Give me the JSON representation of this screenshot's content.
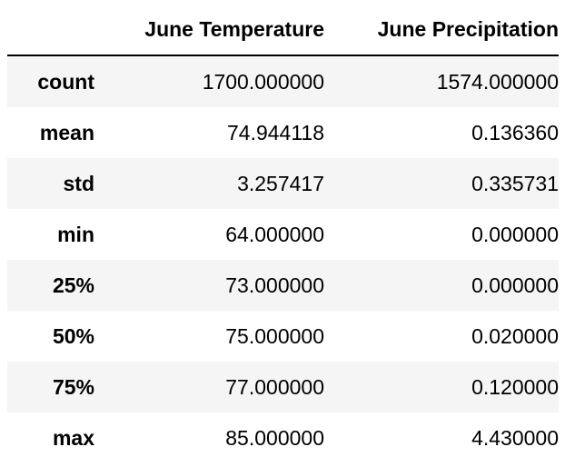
{
  "table": {
    "columns": [
      "",
      "June Temperature",
      "June Precipitation"
    ],
    "rows": [
      {
        "label": "count",
        "values": [
          "1700.000000",
          "1574.000000"
        ]
      },
      {
        "label": "mean",
        "values": [
          "74.944118",
          "0.136360"
        ]
      },
      {
        "label": "std",
        "values": [
          "3.257417",
          "0.335731"
        ]
      },
      {
        "label": "min",
        "values": [
          "64.000000",
          "0.000000"
        ]
      },
      {
        "label": "25%",
        "values": [
          "73.000000",
          "0.000000"
        ]
      },
      {
        "label": "50%",
        "values": [
          "75.000000",
          "0.020000"
        ]
      },
      {
        "label": "75%",
        "values": [
          "77.000000",
          "0.120000"
        ]
      },
      {
        "label": "max",
        "values": [
          "85.000000",
          "4.430000"
        ]
      }
    ]
  }
}
